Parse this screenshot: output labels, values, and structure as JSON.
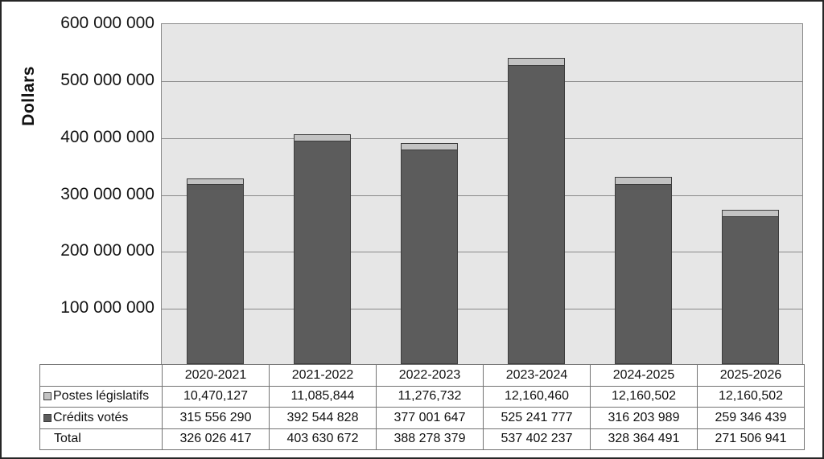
{
  "y_axis": {
    "title": "Dollars",
    "tick_labels": [
      "600 000 000",
      "500 000 000",
      "400 000 000",
      "300 000 000",
      "200 000 000",
      "100 000 000"
    ],
    "max": 600000000,
    "tick_step": 100000000
  },
  "chart_data": {
    "type": "bar",
    "stacked": true,
    "title": "",
    "ylabel": "Dollars",
    "ylim": [
      0,
      600000000
    ],
    "grid": true,
    "legend_position": "table-left",
    "plot_bg": "#e6e6e6",
    "gridline_color": "#898989",
    "bar_border_color": "#3d3d3d",
    "categories": [
      "2020-2021",
      "2021-2022",
      "2022-2023",
      "2023-2024",
      "2024-2025",
      "2025-2026"
    ],
    "series": [
      {
        "name": "Postes législatifs",
        "color": "#c3c3c3",
        "values": [
          10470127,
          11085844,
          11276732,
          12160460,
          12160502,
          12160502
        ]
      },
      {
        "name": "Crédits votés",
        "color": "#5c5c5c",
        "values": [
          315556290,
          392544828,
          377001647,
          525241777,
          316203989,
          259346439
        ]
      }
    ],
    "totals": [
      326026417,
      403630672,
      388278379,
      537402237,
      328364491,
      271506941
    ]
  },
  "table": {
    "rows": [
      {
        "label": "Postes législatifs",
        "marker": "light",
        "values": [
          "10,470,127",
          "11,085,844",
          "11,276,732",
          "12,160,460",
          "12,160,502",
          "12,160,502"
        ]
      },
      {
        "label": "Crédits votés",
        "marker": "dark",
        "values": [
          "315 556 290",
          "392 544 828",
          "377 001 647",
          "525 241 777",
          "316 203 989",
          "259 346 439"
        ]
      },
      {
        "label": "Total",
        "marker": "none",
        "values": [
          "326 026 417",
          "403 630 672",
          "388 278 379",
          "537 402 237",
          "328 364 491",
          "271 506 941"
        ]
      }
    ]
  }
}
